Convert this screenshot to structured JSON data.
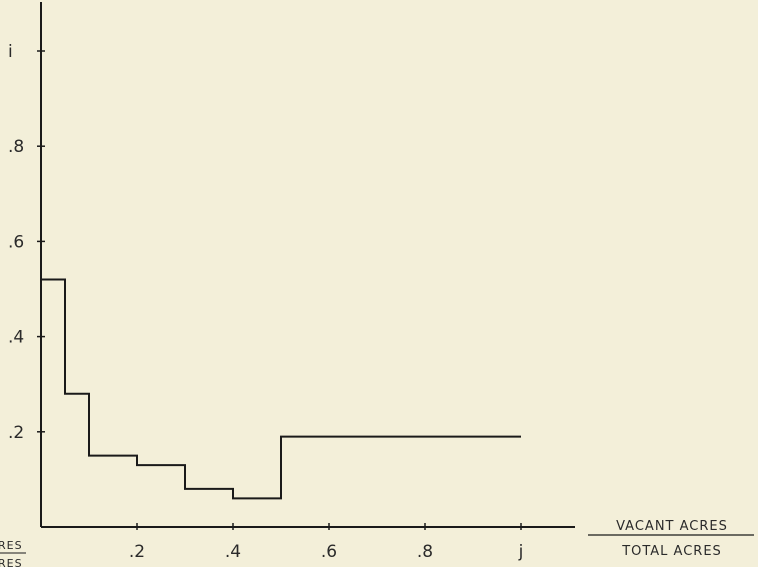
{
  "chart_data": {
    "type": "line",
    "step": true,
    "title": "",
    "xlabel_numerator": "VACANT ACRES",
    "xlabel_denominator": "TOTAL ACRES",
    "ylabel_partial_top": "RES",
    "ylabel_partial_bottom": "RES",
    "xlim": [
      0,
      1.0
    ],
    "ylim": [
      0,
      1.1
    ],
    "x_ticks": [
      0.2,
      0.4,
      0.6,
      0.8,
      1.0
    ],
    "x_tick_labels": [
      ".2",
      ".4",
      ".6",
      ".8",
      "j"
    ],
    "y_ticks": [
      0.2,
      0.4,
      0.6,
      0.8,
      1.0
    ],
    "y_tick_labels": [
      ".2",
      ".4",
      ".6",
      ".8",
      "i"
    ],
    "grid": false,
    "legend": "none",
    "series": [
      {
        "x": [
          0.0,
          0.05,
          0.05,
          0.1,
          0.1,
          0.2,
          0.2,
          0.3,
          0.3,
          0.4,
          0.4,
          0.5,
          0.5,
          1.0
        ],
        "y": [
          0.52,
          0.52,
          0.28,
          0.28,
          0.15,
          0.15,
          0.13,
          0.13,
          0.08,
          0.08,
          0.06,
          0.06,
          0.19,
          0.19
        ]
      }
    ],
    "colors": {
      "line": "#1a1a1a",
      "axis": "#1a1a1a",
      "background": "#f3efd9",
      "text": "#2a2a2a"
    }
  }
}
